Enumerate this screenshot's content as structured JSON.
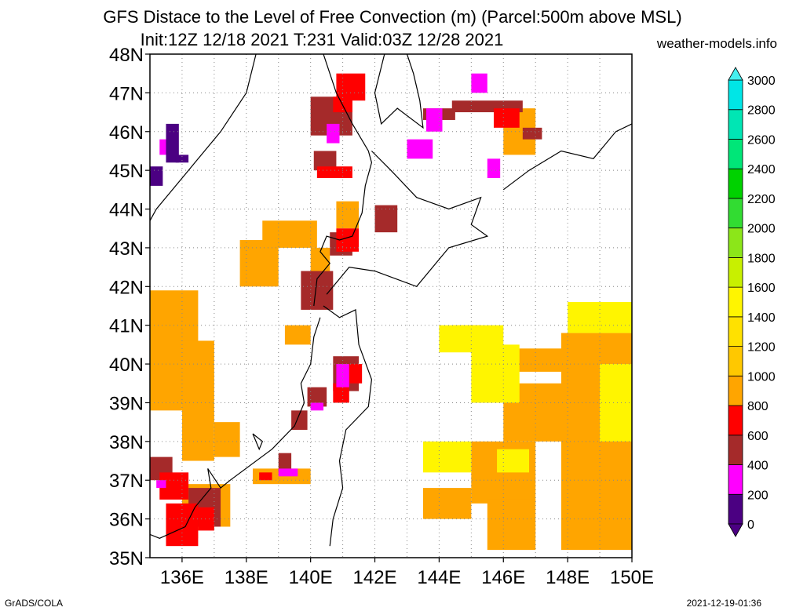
{
  "title_line1": "GFS Distace to the Level of Free Convection (m) (Parcel:500m above MSL)",
  "title_line2": "Init:12Z 12/18 2021 T:231 Valid:03Z 12/28 2021",
  "site": "weather-models.info",
  "footer_left": "GrADS/COLA",
  "footer_right": "2021-12-19-01:36",
  "map": {
    "lon_range": [
      135,
      150
    ],
    "lat_range": [
      35,
      48
    ],
    "lat_labels": [
      "35N",
      "36N",
      "37N",
      "38N",
      "39N",
      "40N",
      "41N",
      "42N",
      "43N",
      "44N",
      "45N",
      "46N",
      "47N",
      "48N"
    ],
    "lon_labels": [
      "136E",
      "138E",
      "140E",
      "142E",
      "144E",
      "146E",
      "148E",
      "150E"
    ]
  },
  "colorbar": {
    "levels": [
      "0",
      "200",
      "400",
      "600",
      "800",
      "1000",
      "1200",
      "1400",
      "1600",
      "1800",
      "2000",
      "2200",
      "2400",
      "2600",
      "2800",
      "3000"
    ],
    "colors": [
      "#4b0082",
      "#ff00ff",
      "#a52a2a",
      "#ff0000",
      "#ffa500",
      "#ffc800",
      "#ffe100",
      "#fff500",
      "#c8f000",
      "#8ce619",
      "#32dc32",
      "#00d200",
      "#00e678",
      "#00e6b4",
      "#00e6e6",
      "#46f0f0"
    ]
  },
  "fields": [
    {
      "level": 4,
      "cells": [
        [
          135,
          41.9,
          136.5,
          39.0
        ],
        [
          135,
          39.0,
          136.0,
          38.8
        ],
        [
          136.0,
          40.6,
          137.0,
          37.5
        ],
        [
          137.0,
          38.5,
          137.8,
          37.6
        ],
        [
          139.2,
          41.0,
          140.0,
          40.5
        ],
        [
          137.8,
          43.2,
          139.0,
          42.0
        ],
        [
          138.5,
          43.7,
          140.2,
          43.0
        ],
        [
          140.0,
          43.0,
          140.6,
          42.3
        ],
        [
          140.8,
          44.2,
          141.5,
          43.5
        ],
        [
          144.4,
          41.0,
          145.3,
          40.5
        ],
        [
          146.0,
          40.4,
          148.0,
          39.8
        ],
        [
          147.8,
          40.8,
          150.0,
          35.2
        ],
        [
          146.0,
          39.5,
          148.0,
          38.0
        ],
        [
          145.0,
          38.0,
          147.0,
          36.4
        ],
        [
          143.5,
          36.8,
          145.0,
          36.0
        ],
        [
          145.5,
          36.5,
          147.0,
          35.2
        ],
        [
          136.0,
          36.9,
          137.5,
          35.8
        ],
        [
          135.5,
          36.0,
          136.5,
          35.5
        ],
        [
          138.2,
          37.3,
          140.0,
          36.9
        ],
        [
          146.0,
          46.6,
          147.0,
          45.4
        ]
      ]
    },
    {
      "level": 7,
      "cells": [
        [
          144.0,
          41.0,
          146.0,
          40.3
        ],
        [
          145.0,
          40.5,
          146.5,
          39.0
        ],
        [
          143.5,
          38.0,
          145.0,
          37.2
        ],
        [
          145.8,
          37.8,
          146.8,
          37.2
        ],
        [
          148.0,
          41.6,
          150.0,
          40.8
        ],
        [
          149.0,
          40.0,
          150.0,
          38.0
        ]
      ]
    },
    {
      "level": 2,
      "cells": [
        [
          135,
          37.6,
          135.7,
          37.0
        ],
        [
          140.0,
          46.9,
          141.3,
          45.9
        ],
        [
          140.1,
          45.5,
          140.8,
          45.0
        ],
        [
          143.5,
          46.6,
          144.5,
          46.3
        ],
        [
          144.4,
          46.8,
          146.6,
          46.5
        ],
        [
          142.0,
          44.1,
          142.7,
          43.4
        ],
        [
          140.6,
          43.4,
          141.3,
          42.8
        ],
        [
          139.7,
          42.4,
          140.7,
          41.4
        ],
        [
          140.7,
          40.2,
          141.5,
          39.3
        ],
        [
          139.9,
          39.4,
          140.5,
          38.9
        ],
        [
          139.4,
          38.8,
          139.9,
          38.3
        ],
        [
          136.2,
          36.8,
          137.2,
          35.8
        ],
        [
          139.0,
          37.7,
          139.4,
          37.2
        ],
        [
          146.6,
          46.1,
          147.2,
          45.8
        ]
      ]
    },
    {
      "level": 3,
      "cells": [
        [
          140.8,
          47.5,
          141.7,
          46.8
        ],
        [
          140.7,
          46.9,
          141.3,
          46.5
        ],
        [
          135.3,
          37.2,
          136.2,
          36.5
        ],
        [
          135.5,
          36.4,
          136.5,
          35.3
        ],
        [
          136.5,
          36.3,
          137.0,
          35.7
        ],
        [
          140.2,
          45.1,
          141.3,
          44.8
        ],
        [
          145.7,
          46.6,
          146.5,
          46.1
        ],
        [
          140.8,
          43.5,
          141.5,
          42.9
        ],
        [
          141.0,
          40.0,
          141.6,
          39.5
        ],
        [
          140.7,
          39.5,
          141.2,
          39.0
        ],
        [
          138.4,
          37.2,
          138.8,
          37.0
        ]
      ]
    },
    {
      "level": 1,
      "cells": [
        [
          143.0,
          45.8,
          143.8,
          45.3
        ],
        [
          143.6,
          46.6,
          144.1,
          46.0
        ],
        [
          145.0,
          47.5,
          145.5,
          47.0
        ],
        [
          140.5,
          46.2,
          140.9,
          45.7
        ],
        [
          140.8,
          40.0,
          141.2,
          39.4
        ],
        [
          140.0,
          39.0,
          140.4,
          38.8
        ],
        [
          145.5,
          45.3,
          145.9,
          44.8
        ],
        [
          139.0,
          37.3,
          139.6,
          37.1
        ],
        [
          135.3,
          45.8,
          135.8,
          45.4
        ],
        [
          135.2,
          37.0,
          135.5,
          36.8
        ]
      ]
    },
    {
      "level": 0,
      "cells": [
        [
          135.5,
          46.2,
          135.9,
          45.2
        ],
        [
          135.0,
          45.1,
          135.4,
          44.6
        ],
        [
          135.8,
          45.4,
          136.2,
          45.2
        ]
      ]
    }
  ],
  "coastline": [
    [
      [
        138.3,
        48.0
      ],
      [
        138.0,
        47.0
      ],
      [
        137.2,
        46.0
      ],
      [
        136.2,
        45.0
      ],
      [
        135.2,
        44.0
      ],
      [
        135.0,
        43.7
      ]
    ],
    [
      [
        140.4,
        48.0
      ],
      [
        140.8,
        47.0
      ],
      [
        141.3,
        46.2
      ],
      [
        141.8,
        45.5
      ],
      [
        141.9,
        45.2
      ],
      [
        141.7,
        44.6
      ],
      [
        141.6,
        43.9
      ],
      [
        141.3,
        43.3
      ],
      [
        140.9,
        43.2
      ],
      [
        140.5,
        43.3
      ],
      [
        140.3,
        42.9
      ],
      [
        140.6,
        42.6
      ],
      [
        140.2,
        42.2
      ],
      [
        140.1,
        41.5
      ]
    ],
    [
      [
        141.9,
        45.5
      ],
      [
        142.5,
        45.0
      ],
      [
        143.3,
        44.3
      ],
      [
        144.3,
        44.0
      ],
      [
        145.3,
        44.3
      ],
      [
        145.0,
        43.6
      ],
      [
        145.5,
        43.3
      ],
      [
        144.3,
        43.0
      ],
      [
        143.3,
        42.0
      ],
      [
        142.0,
        42.4
      ],
      [
        141.2,
        42.5
      ],
      [
        140.5,
        41.8
      ]
    ],
    [
      [
        142.3,
        48.0
      ],
      [
        142.0,
        47.0
      ],
      [
        142.2,
        46.2
      ],
      [
        142.7,
        46.6
      ],
      [
        143.5,
        46.1
      ],
      [
        143.4,
        46.8
      ],
      [
        143.2,
        47.5
      ],
      [
        143.0,
        48.0
      ]
    ],
    [
      [
        140.4,
        41.5
      ],
      [
        140.9,
        41.2
      ],
      [
        141.4,
        41.4
      ],
      [
        141.5,
        40.5
      ],
      [
        141.9,
        39.6
      ],
      [
        141.8,
        38.9
      ],
      [
        141.1,
        38.3
      ],
      [
        140.9,
        37.5
      ],
      [
        141.0,
        36.8
      ],
      [
        140.7,
        36.0
      ],
      [
        140.6,
        35.3
      ]
    ],
    [
      [
        140.3,
        41.2
      ],
      [
        140.1,
        40.7
      ],
      [
        140.0,
        40.0
      ],
      [
        139.7,
        39.5
      ],
      [
        139.8,
        39.0
      ],
      [
        139.5,
        38.4
      ],
      [
        138.8,
        37.8
      ],
      [
        137.5,
        37.0
      ],
      [
        137.2,
        36.8
      ],
      [
        136.8,
        37.3
      ],
      [
        136.9,
        36.8
      ],
      [
        136.4,
        36.3
      ],
      [
        136.1,
        35.8
      ],
      [
        135.3,
        35.5
      ],
      [
        135.0,
        35.6
      ]
    ],
    [
      [
        138.2,
        38.2
      ],
      [
        138.5,
        38.0
      ],
      [
        138.4,
        37.8
      ],
      [
        138.2,
        38.2
      ]
    ],
    [
      [
        146.0,
        44.5
      ],
      [
        146.8,
        45.0
      ],
      [
        147.8,
        45.5
      ],
      [
        148.8,
        45.3
      ],
      [
        149.5,
        46.0
      ],
      [
        150.0,
        46.2
      ]
    ]
  ]
}
